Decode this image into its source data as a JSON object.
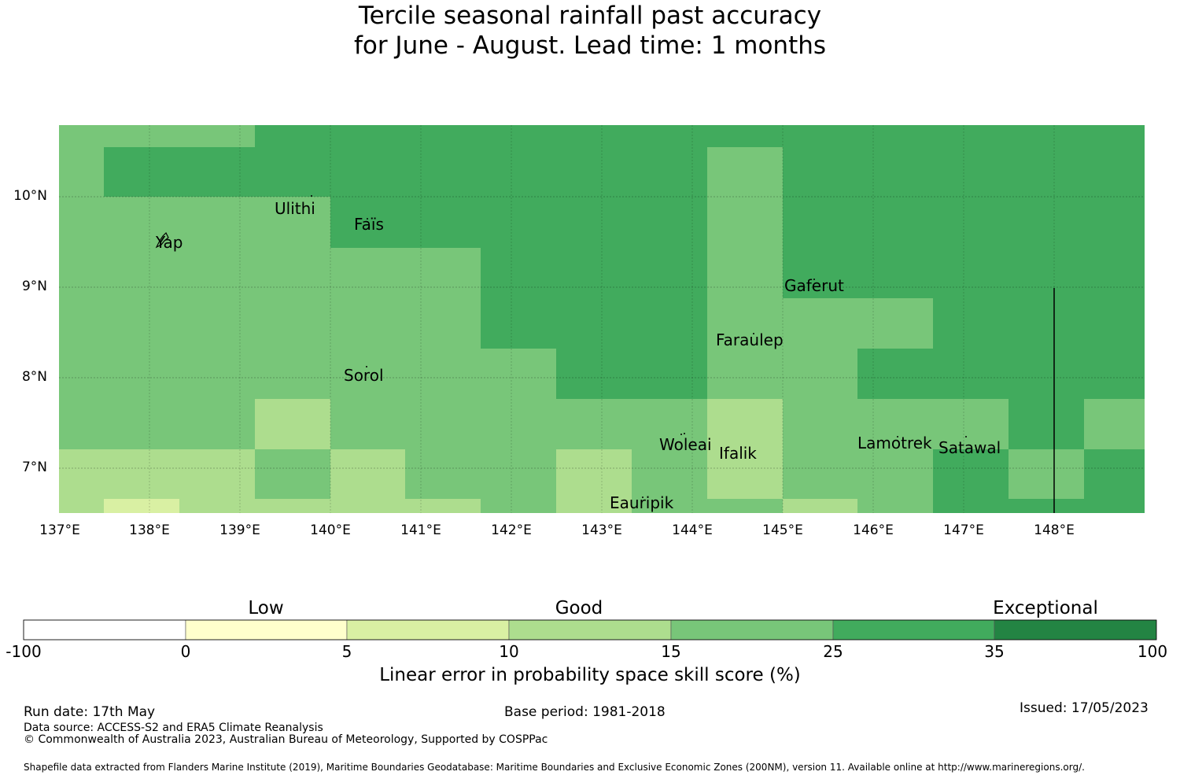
{
  "title": {
    "line1": "Tercile seasonal rainfall past accuracy",
    "line2": "for June - August. Lead time: 1 months"
  },
  "map": {
    "lon_range": [
      137,
      149
    ],
    "lat_range": [
      6.5,
      10.8
    ],
    "y_ticks": [
      "10°N",
      "9°N",
      "8°N",
      "7°N"
    ],
    "x_ticks": [
      "137°E",
      "138°E",
      "139°E",
      "140°E",
      "141°E",
      "142°E",
      "143°E",
      "144°E",
      "145°E",
      "146°E",
      "147°E",
      "148°E"
    ],
    "skill_categories": [
      "0-5",
      "5-10",
      "10-15",
      "15-25",
      "25-35"
    ],
    "places": [
      {
        "name": "Ulithi",
        "lon": 139.8,
        "lat": 10.0
      },
      {
        "name": "Faïs",
        "lon": 140.5,
        "lat": 9.75
      },
      {
        "name": "Yap",
        "lon": 138.2,
        "lat": 9.5
      },
      {
        "name": "Gaferut",
        "lon": 145.4,
        "lat": 9.2
      },
      {
        "name": "Faraulep",
        "lon": 144.6,
        "lat": 8.6
      },
      {
        "name": "Sorol",
        "lon": 140.4,
        "lat": 8.1
      },
      {
        "name": "Woleai",
        "lon": 143.9,
        "lat": 7.35
      },
      {
        "name": "Ifalik",
        "lon": 144.5,
        "lat": 7.25
      },
      {
        "name": "Lamotrek",
        "lon": 146.3,
        "lat": 7.45
      },
      {
        "name": "Satawal",
        "lon": 147.0,
        "lat": 7.35
      },
      {
        "name": "Eauripik",
        "lon": 143.1,
        "lat": 6.7
      }
    ]
  },
  "colorbar": {
    "categories": [
      "Low",
      "Good",
      "Exceptional"
    ],
    "ticks": [
      "-100",
      "0",
      "5",
      "10",
      "15",
      "25",
      "35",
      "100"
    ],
    "colors": [
      "#ffffff",
      "#ffffcc",
      "#d9f0a3",
      "#addd8e",
      "#78c679",
      "#41ab5d",
      "#238443"
    ],
    "label": "Linear error in probability space skill score (%)"
  },
  "footer": {
    "run_date": "Run date: 17th May",
    "base_period": "Base period: 1981-2018",
    "issued": "Issued: 17/05/2023",
    "data_source": "Data source: ACCESS-S2 and ERA5 Climate Reanalysis",
    "copyright": "© Commonwealth of Australia 2023, Australian Bureau of Meteorology, Supported by COSPPac",
    "shapefile": "Shapefile data extracted from Flanders Marine Institute (2019), Maritime Boundaries Geodatabase: Maritime Boundaries and Exclusive Economic Zones (200NM), version 11. Available online at http://www.marineregions.org/."
  }
}
